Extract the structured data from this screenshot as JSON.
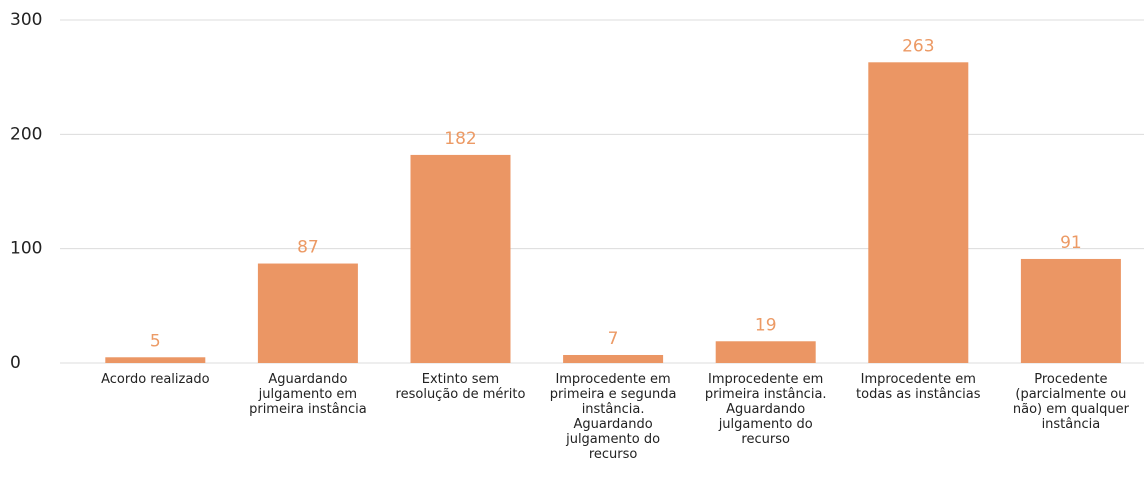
{
  "chart_data": {
    "type": "bar",
    "categories": [
      "Acordo realizado",
      "Aguardando julgamento em primeira instância",
      "Extinto sem resolução de mérito",
      "Improcedente em primeira e segunda instância. Aguardando julgamento do recurso",
      "Improcedente em primeira instância. Aguardando julgamento do recurso",
      "Improcedente em todas as instâncias",
      "Procedente (parcialmente ou não) em qualquer instância"
    ],
    "values": [
      5,
      87,
      182,
      7,
      19,
      263,
      91
    ],
    "color": "#eb9664",
    "label_color": "#ec9a65",
    "ylim": [
      0,
      300
    ],
    "yticks": [
      0,
      100,
      200,
      300
    ],
    "grid": true
  }
}
